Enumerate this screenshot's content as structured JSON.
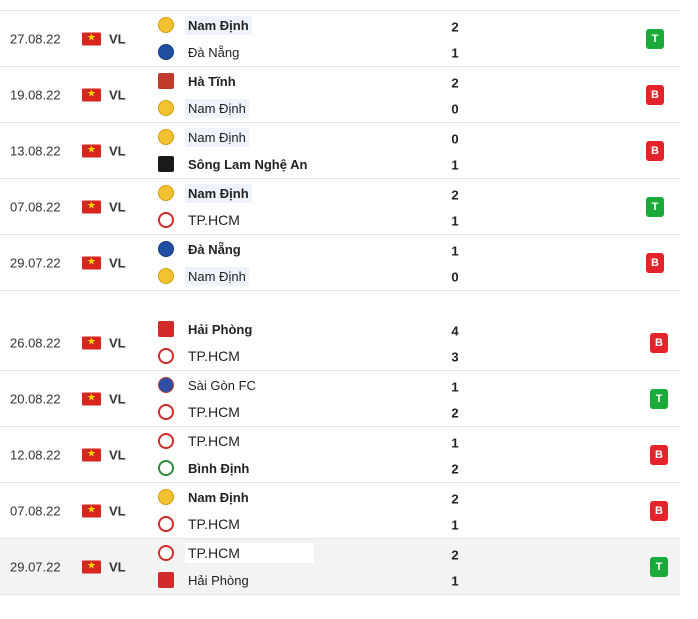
{
  "flag_glyph": "★",
  "groups": [
    {
      "matches": [
        {
          "date": "27.08.22",
          "league": "VL",
          "home": {
            "name": "Nam Định",
            "crest": "nam-dinh-crest"
          },
          "away": {
            "name": "Đà Nẵng",
            "crest": "da-nang-crest"
          },
          "home_score": "2",
          "away_score": "1",
          "result": "T"
        },
        {
          "date": "19.08.22",
          "league": "VL",
          "home": {
            "name": "Hà Tĩnh",
            "crest": "ha-tinh-crest"
          },
          "away": {
            "name": "Nam Định",
            "crest": "nam-dinh-crest"
          },
          "home_score": "2",
          "away_score": "0",
          "result": "B"
        },
        {
          "date": "13.08.22",
          "league": "VL",
          "home": {
            "name": "Nam Định",
            "crest": "nam-dinh-crest"
          },
          "away": {
            "name": "Sông Lam Nghệ An",
            "crest": "slna-crest"
          },
          "home_score": "0",
          "away_score": "1",
          "result": "B"
        },
        {
          "date": "07.08.22",
          "league": "VL",
          "home": {
            "name": "Nam Định",
            "crest": "nam-dinh-crest"
          },
          "away": {
            "name": "TP.HCM",
            "crest": "tphcm-crest"
          },
          "home_score": "2",
          "away_score": "1",
          "result": "T"
        },
        {
          "date": "29.07.22",
          "league": "VL",
          "home": {
            "name": "Đà Nẵng",
            "crest": "da-nang-crest"
          },
          "away": {
            "name": "Nam Định",
            "crest": "nam-dinh-crest"
          },
          "home_score": "1",
          "away_score": "0",
          "result": "B"
        }
      ]
    },
    {
      "matches": [
        {
          "date": "26.08.22",
          "league": "VL",
          "home": {
            "name": "Hải Phòng",
            "crest": "hai-phong-crest"
          },
          "away": {
            "name": "TP.HCM",
            "crest": "tphcm-crest"
          },
          "home_score": "4",
          "away_score": "3",
          "result": "B"
        },
        {
          "date": "20.08.22",
          "league": "VL",
          "home": {
            "name": "Sài Gòn FC",
            "crest": "sai-gon-crest"
          },
          "away": {
            "name": "TP.HCM",
            "crest": "tphcm-crest"
          },
          "home_score": "1",
          "away_score": "2",
          "result": "T"
        },
        {
          "date": "12.08.22",
          "league": "VL",
          "home": {
            "name": "TP.HCM",
            "crest": "tphcm-crest"
          },
          "away": {
            "name": "Bình Định",
            "crest": "binh-dinh-crest"
          },
          "home_score": "1",
          "away_score": "2",
          "result": "B"
        },
        {
          "date": "07.08.22",
          "league": "VL",
          "home": {
            "name": "Nam Định",
            "crest": "nam-dinh-crest"
          },
          "away": {
            "name": "TP.HCM",
            "crest": "tphcm-crest"
          },
          "home_score": "2",
          "away_score": "1",
          "result": "B"
        },
        {
          "date": "29.07.22",
          "league": "VL",
          "home": {
            "name": "TP.HCM",
            "crest": "tphcm-crest"
          },
          "away": {
            "name": "Hải Phòng",
            "crest": "hai-phong-crest"
          },
          "home_score": "2",
          "away_score": "1",
          "result": "T"
        }
      ]
    }
  ],
  "colors": {
    "win": "#1aaa3a",
    "loss": "#e4242b",
    "flag": "#da251d"
  }
}
